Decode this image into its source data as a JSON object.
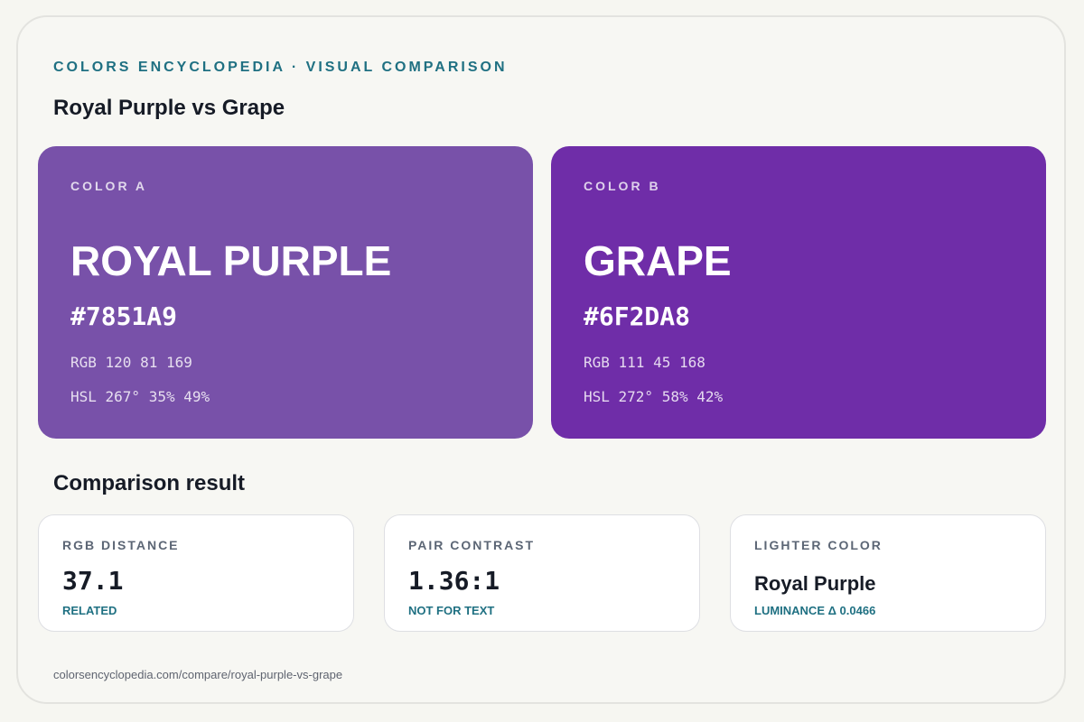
{
  "header": {
    "eyebrow": "COLORS ENCYCLOPEDIA · VISUAL COMPARISON",
    "title": "Royal Purple vs Grape"
  },
  "colors": [
    {
      "label": "COLOR A",
      "name": "ROYAL PURPLE",
      "hex": "#7851A9",
      "rgb": "RGB 120 81 169",
      "hsl": "HSL 267° 35% 49%",
      "swatch_color": "#7851a9"
    },
    {
      "label": "COLOR B",
      "name": "GRAPE",
      "hex": "#6F2DA8",
      "rgb": "RGB 111 45 168",
      "hsl": "HSL 272° 58% 42%",
      "swatch_color": "#6f2da8"
    }
  ],
  "comparison": {
    "heading": "Comparison result",
    "cards": [
      {
        "label": "RGB DISTANCE",
        "value": "37.1",
        "note": "RELATED"
      },
      {
        "label": "PAIR CONTRAST",
        "value": "1.36:1",
        "note": "NOT FOR TEXT"
      },
      {
        "label": "LIGHTER COLOR",
        "value": "Royal Purple",
        "note": "LUMINANCE Δ 0.0466"
      }
    ]
  },
  "footer": {
    "url": "colorsencyclopedia.com/compare/royal-purple-vs-grape"
  },
  "theme": {
    "accent": "#1f7082",
    "background": "#f6f6f1",
    "text": "#161b26"
  }
}
